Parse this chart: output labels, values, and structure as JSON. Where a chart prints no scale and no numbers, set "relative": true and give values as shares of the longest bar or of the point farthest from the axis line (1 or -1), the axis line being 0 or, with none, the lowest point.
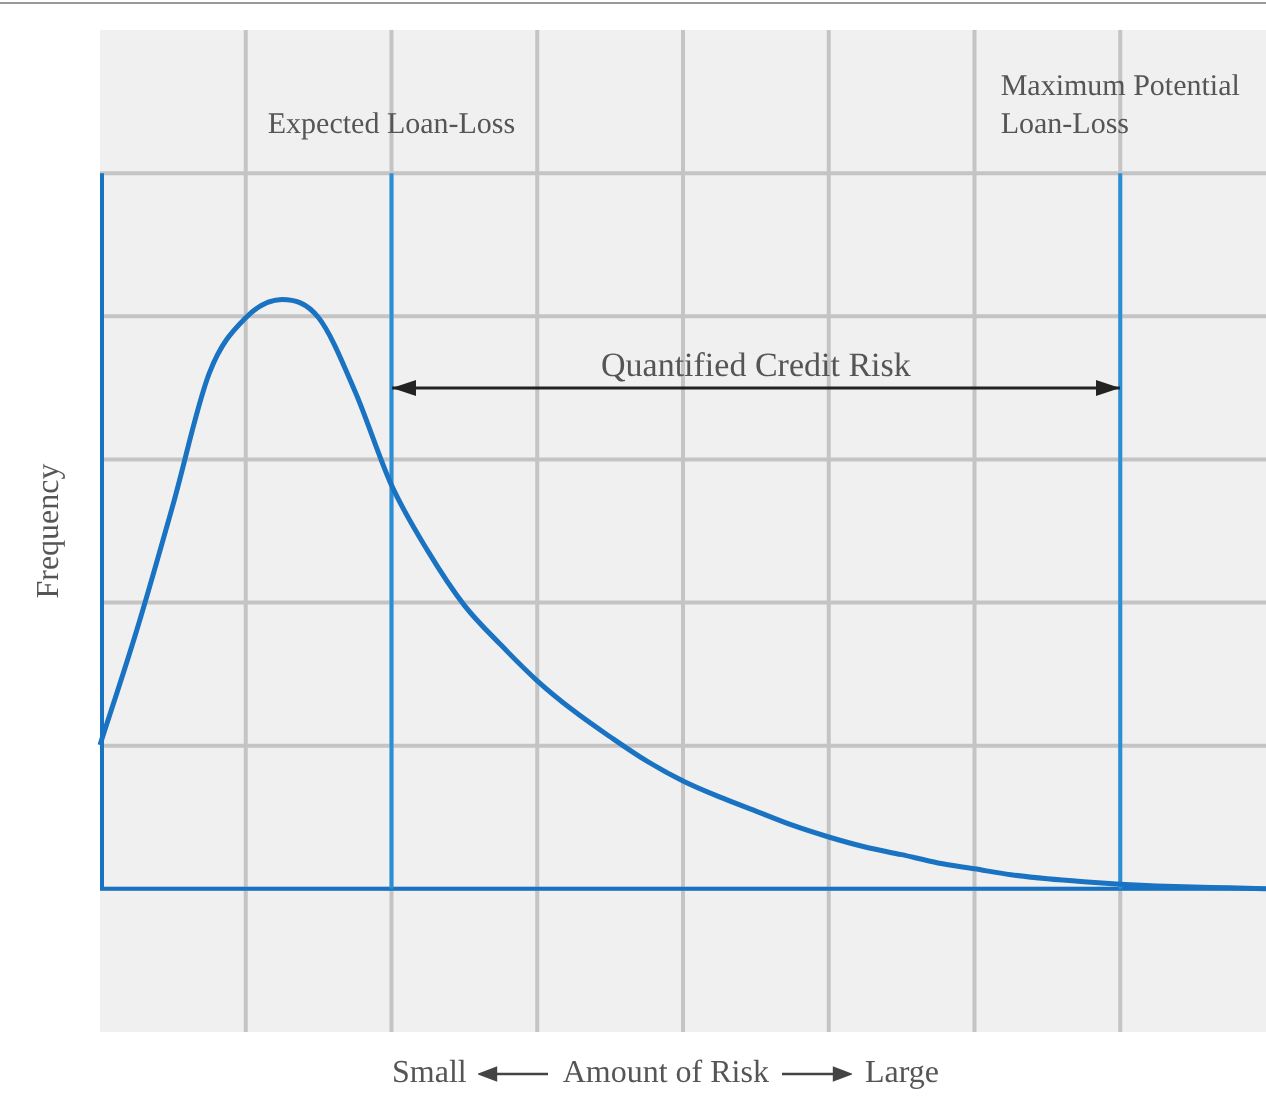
{
  "chart_data": {
    "type": "line",
    "relative": true,
    "ylabel": "Frequency",
    "categories": [
      null,
      null,
      null,
      null,
      null,
      null,
      null,
      null,
      null,
      null,
      null,
      null,
      null,
      null,
      null,
      null,
      null,
      null,
      null,
      null,
      null,
      null,
      null,
      null,
      null,
      null,
      null,
      null,
      null,
      null,
      null,
      null,
      null
    ],
    "values": [
      0.244,
      0.437,
      0.651,
      0.875,
      0.969,
      1.0,
      0.969,
      0.844,
      0.685,
      0.573,
      0.481,
      0.414,
      0.353,
      0.302,
      0.258,
      0.217,
      0.183,
      0.156,
      0.132,
      0.108,
      0.088,
      0.071,
      0.058,
      0.044,
      0.034,
      0.024,
      0.017,
      0.012,
      0.008,
      0.005,
      0.003,
      0.002,
      0.0
    ],
    "color": "#1a73c2",
    "grid": true,
    "marker": "none",
    "line_style": "solid",
    "annotations": [
      "Expected Loan-Loss",
      "Maximum Potential Loan-Loss",
      "Quantified Credit Risk",
      "Small",
      "Amount of Risk",
      "Large"
    ]
  }
}
